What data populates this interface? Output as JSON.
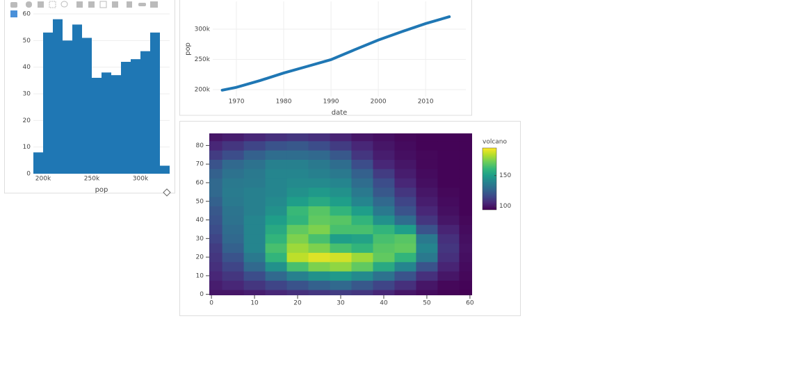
{
  "chart_data": [
    {
      "type": "histogram",
      "x_label": "pop",
      "color": "#1f77b4",
      "grid": true,
      "bins": [
        190000,
        200000,
        210000,
        220000,
        230000,
        240000,
        250000,
        260000,
        270000,
        280000,
        290000,
        300000,
        310000,
        320000,
        330000
      ],
      "counts": [
        8,
        53,
        58,
        50,
        56,
        51,
        36,
        38,
        37,
        42,
        43,
        46,
        53,
        3
      ],
      "xlim": [
        190000,
        330000
      ],
      "xticks": [
        {
          "value": 200000,
          "label": "200k"
        },
        {
          "value": 250000,
          "label": "250k"
        },
        {
          "value": 300000,
          "label": "300k"
        }
      ],
      "ylim": [
        0,
        60
      ],
      "yticks": [
        0,
        10,
        20,
        30,
        40,
        50,
        60
      ]
    },
    {
      "type": "line",
      "x_label": "date",
      "y_label": "pop",
      "color": "#1f77b4",
      "grid": true,
      "x": [
        1967,
        1970,
        1975,
        1980,
        1985,
        1990,
        1995,
        2000,
        2005,
        2010,
        2015
      ],
      "values": [
        199100,
        203800,
        215000,
        227500,
        238500,
        249600,
        266000,
        282000,
        296000,
        309300,
        320600
      ],
      "xlim": [
        1965,
        2018.5
      ],
      "xticks": [
        1970,
        1980,
        1990,
        2000,
        2010
      ],
      "ylim": [
        188500,
        346000
      ],
      "yticks": [
        {
          "value": 200000,
          "label": "200k"
        },
        {
          "value": 250000,
          "label": "250k"
        },
        {
          "value": 300000,
          "label": "300k"
        }
      ]
    },
    {
      "type": "heatmap",
      "colorbar_title": "volcano",
      "colorscale": "viridis",
      "x": [
        0,
        5,
        10,
        15,
        20,
        25,
        30,
        35,
        40,
        45,
        50,
        55,
        60
      ],
      "y": [
        0,
        5,
        10,
        15,
        20,
        25,
        30,
        35,
        40,
        45,
        50,
        55,
        60,
        65,
        70,
        75,
        80,
        85
      ],
      "z": [
        [
          100,
          100,
          102,
          105,
          108,
          110,
          112,
          110,
          105,
          100,
          97,
          95,
          94
        ],
        [
          102,
          105,
          110,
          115,
          120,
          125,
          128,
          122,
          115,
          108,
          100,
          96,
          95
        ],
        [
          105,
          110,
          118,
          128,
          138,
          145,
          148,
          142,
          132,
          120,
          108,
          100,
          96
        ],
        [
          108,
          115,
          128,
          145,
          165,
          175,
          178,
          170,
          155,
          140,
          120,
          104,
          97
        ],
        [
          110,
          120,
          135,
          160,
          185,
          190,
          188,
          180,
          170,
          160,
          135,
          108,
          98
        ],
        [
          112,
          125,
          140,
          165,
          180,
          175,
          165,
          160,
          168,
          170,
          140,
          110,
          99
        ],
        [
          115,
          128,
          140,
          160,
          175,
          165,
          150,
          152,
          165,
          168,
          135,
          108,
          98
        ],
        [
          118,
          130,
          140,
          155,
          170,
          175,
          165,
          165,
          160,
          150,
          120,
          104,
          97
        ],
        [
          120,
          132,
          140,
          150,
          160,
          170,
          168,
          160,
          145,
          130,
          110,
          100,
          96
        ],
        [
          122,
          133,
          138,
          145,
          162,
          168,
          160,
          150,
          135,
          120,
          105,
          98,
          95
        ],
        [
          125,
          135,
          138,
          142,
          150,
          155,
          150,
          140,
          128,
          115,
          102,
          97,
          95
        ],
        [
          128,
          136,
          138,
          140,
          145,
          148,
          145,
          135,
          122,
          110,
          100,
          96,
          95
        ],
        [
          128,
          135,
          136,
          140,
          142,
          142,
          140,
          130,
          118,
          105,
          98,
          95,
          95
        ],
        [
          125,
          132,
          135,
          140,
          140,
          138,
          135,
          125,
          112,
          102,
          97,
          95,
          95
        ],
        [
          120,
          128,
          132,
          138,
          138,
          135,
          130,
          118,
          105,
          100,
          96,
          95,
          95
        ],
        [
          112,
          118,
          125,
          130,
          130,
          128,
          122,
          110,
          102,
          98,
          96,
          95,
          95
        ],
        [
          105,
          110,
          115,
          120,
          122,
          118,
          112,
          105,
          100,
          97,
          95,
          95,
          95
        ],
        [
          100,
          102,
          105,
          108,
          110,
          108,
          104,
          100,
          98,
          96,
          95,
          95,
          95
        ]
      ],
      "xlim": [
        -0.5,
        60.5
      ],
      "xticks": [
        0,
        10,
        20,
        30,
        40,
        50,
        60
      ],
      "ylim": [
        -0.5,
        86.5
      ],
      "yticks": [
        0,
        10,
        20,
        30,
        40,
        50,
        60,
        70,
        80
      ],
      "zlim": [
        94,
        195
      ],
      "zticks": [
        100,
        150
      ]
    }
  ]
}
